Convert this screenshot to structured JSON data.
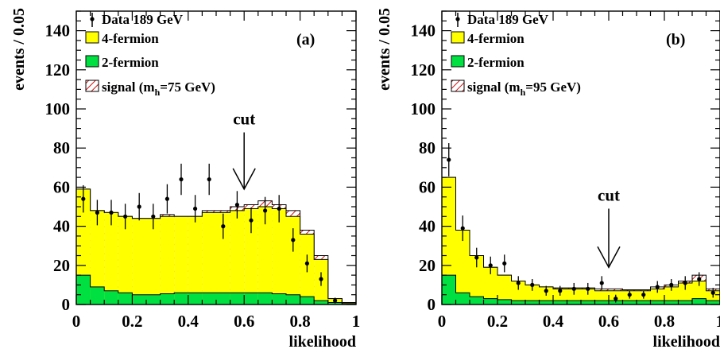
{
  "figure": {
    "colors": {
      "four_fermion": "#ffff00",
      "two_fermion": "#00e040",
      "signal_hatch": "#d01010",
      "data": "#000000"
    }
  },
  "chart_data": [
    {
      "type": "histogram",
      "panel_tag": "(a)",
      "xlabel": "likelihood",
      "ylabel": "events / 0.05",
      "xlim": [
        0,
        1
      ],
      "ylim": [
        0,
        150
      ],
      "x_ticks": [
        "0",
        "0.2",
        "0.4",
        "0.6",
        "0.8",
        "1"
      ],
      "y_ticks": [
        "0",
        "20",
        "40",
        "60",
        "80",
        "100",
        "120",
        "140"
      ],
      "legend": [
        "Data 189 GeV",
        "4-fermion",
        "2-fermion",
        "signal (m",
        "h",
        "=75 GeV)"
      ],
      "legend_placement": "top-left",
      "cut": {
        "label": "cut",
        "x": 0.6,
        "arrow_from": 88,
        "arrow_to": 59
      },
      "bin_edges": [
        0,
        0.05,
        0.1,
        0.15,
        0.2,
        0.25,
        0.3,
        0.35,
        0.4,
        0.45,
        0.5,
        0.55,
        0.6,
        0.65,
        0.7,
        0.75,
        0.8,
        0.85,
        0.9,
        0.95,
        1.0
      ],
      "series": [
        {
          "name": "2-fermion",
          "values": [
            15,
            9,
            7,
            6,
            5,
            5,
            5.5,
            6,
            6,
            6,
            6,
            6,
            6,
            6,
            5.5,
            5,
            4,
            2,
            1,
            0.5
          ]
        },
        {
          "name": "4-fermion",
          "values": [
            59,
            48,
            47,
            45,
            44,
            44,
            45,
            45,
            45,
            47,
            47,
            48,
            49,
            50,
            49,
            45,
            36,
            23,
            3,
            1
          ]
        },
        {
          "name": "signal (mh=75 GeV)",
          "values": [
            59,
            48,
            47,
            45,
            44,
            44,
            46,
            45,
            45,
            48,
            48,
            50,
            51,
            53,
            51,
            48,
            38,
            25,
            3,
            1
          ]
        }
      ],
      "data_points": [
        {
          "x": 0.025,
          "y": 54,
          "err": 7
        },
        {
          "x": 0.075,
          "y": 47,
          "err": 6.5
        },
        {
          "x": 0.125,
          "y": 47,
          "err": 6.5
        },
        {
          "x": 0.175,
          "y": 45,
          "err": 6.5
        },
        {
          "x": 0.225,
          "y": 50,
          "err": 7
        },
        {
          "x": 0.275,
          "y": 45,
          "err": 6.5
        },
        {
          "x": 0.325,
          "y": 54,
          "err": 7.5
        },
        {
          "x": 0.375,
          "y": 64,
          "err": 8
        },
        {
          "x": 0.425,
          "y": 49,
          "err": 7
        },
        {
          "x": 0.475,
          "y": 64,
          "err": 8
        },
        {
          "x": 0.525,
          "y": 40,
          "err": 6.5
        },
        {
          "x": 0.575,
          "y": 51,
          "err": 7
        },
        {
          "x": 0.625,
          "y": 43,
          "err": 6.5
        },
        {
          "x": 0.675,
          "y": 48,
          "err": 7
        },
        {
          "x": 0.725,
          "y": 49,
          "err": 7
        },
        {
          "x": 0.775,
          "y": 33,
          "err": 6
        },
        {
          "x": 0.825,
          "y": 21,
          "err": 4.5
        },
        {
          "x": 0.875,
          "y": 13,
          "err": 3.5
        },
        {
          "x": 0.925,
          "y": 2,
          "err": 1.5
        },
        {
          "x": 0.975,
          "y": 0,
          "err": 0
        }
      ]
    },
    {
      "type": "histogram",
      "panel_tag": "(b)",
      "xlabel": "likelihood",
      "ylabel": "events / 0.05",
      "xlim": [
        0,
        1
      ],
      "ylim": [
        0,
        150
      ],
      "x_ticks": [
        "0",
        "0.2",
        "0.4",
        "0.6",
        "0.8",
        "1"
      ],
      "y_ticks": [
        "0",
        "20",
        "40",
        "60",
        "80",
        "100",
        "120",
        "140"
      ],
      "legend": [
        "Data 189 GeV",
        "4-fermion",
        "2-fermion",
        "signal (m",
        "h",
        "=95 GeV)"
      ],
      "legend_placement": "top-left",
      "cut": {
        "label": "cut",
        "x": 0.6,
        "arrow_from": 49,
        "arrow_to": 19
      },
      "bin_edges": [
        0,
        0.05,
        0.1,
        0.15,
        0.2,
        0.25,
        0.3,
        0.35,
        0.4,
        0.45,
        0.5,
        0.55,
        0.6,
        0.65,
        0.7,
        0.75,
        0.8,
        0.85,
        0.9,
        0.95,
        1.0
      ],
      "series": [
        {
          "name": "2-fermion",
          "values": [
            15,
            6,
            4,
            3,
            2.5,
            2,
            2,
            2,
            2,
            2,
            2,
            2,
            2,
            2,
            2,
            2,
            2,
            2,
            3,
            2
          ]
        },
        {
          "name": "4-fermion",
          "values": [
            65,
            38,
            25,
            19,
            15,
            12,
            10,
            9,
            8,
            8,
            8,
            7,
            7,
            7,
            7,
            8,
            9,
            11,
            12,
            7
          ]
        },
        {
          "name": "signal (mh=95 GeV)",
          "values": [
            65,
            38,
            25,
            19,
            15,
            12,
            10,
            9,
            8.5,
            8.5,
            8.5,
            8,
            8,
            7.5,
            7.5,
            9,
            10,
            12,
            15,
            8
          ]
        }
      ],
      "data_points": [
        {
          "x": 0.025,
          "y": 74,
          "err": 8.5
        },
        {
          "x": 0.075,
          "y": 39,
          "err": 6.5
        },
        {
          "x": 0.125,
          "y": 24,
          "err": 5
        },
        {
          "x": 0.175,
          "y": 20,
          "err": 4.5
        },
        {
          "x": 0.225,
          "y": 21,
          "err": 4.5
        },
        {
          "x": 0.275,
          "y": 11,
          "err": 3.5
        },
        {
          "x": 0.325,
          "y": 10,
          "err": 3
        },
        {
          "x": 0.375,
          "y": 7,
          "err": 2.5
        },
        {
          "x": 0.425,
          "y": 7,
          "err": 2.5
        },
        {
          "x": 0.475,
          "y": 8,
          "err": 3
        },
        {
          "x": 0.525,
          "y": 8,
          "err": 3
        },
        {
          "x": 0.575,
          "y": 11,
          "err": 3.5
        },
        {
          "x": 0.625,
          "y": 3,
          "err": 2
        },
        {
          "x": 0.675,
          "y": 5,
          "err": 2
        },
        {
          "x": 0.725,
          "y": 5,
          "err": 2
        },
        {
          "x": 0.775,
          "y": 9,
          "err": 3
        },
        {
          "x": 0.825,
          "y": 10,
          "err": 3
        },
        {
          "x": 0.875,
          "y": 11,
          "err": 3.5
        },
        {
          "x": 0.925,
          "y": 13,
          "err": 3.5
        },
        {
          "x": 0.975,
          "y": 6,
          "err": 2.5
        }
      ]
    }
  ]
}
